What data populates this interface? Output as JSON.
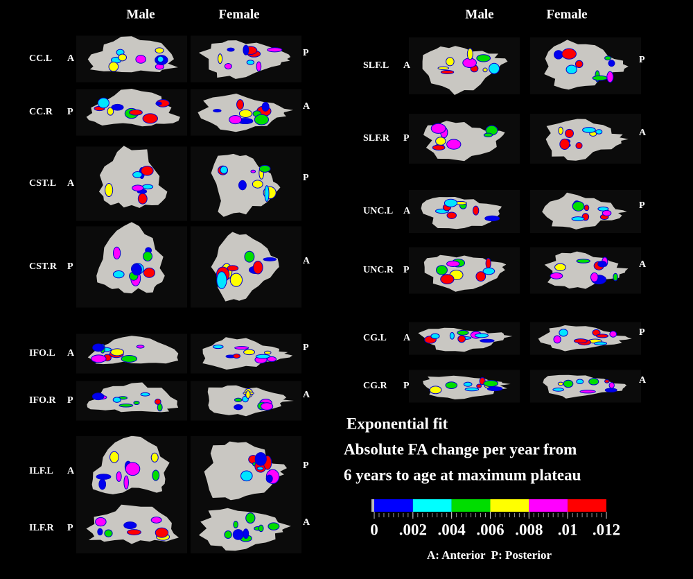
{
  "left": {
    "headers": [
      "Male",
      "Female"
    ],
    "rows": [
      {
        "tract": "CC.L",
        "start": "A",
        "end": "P"
      },
      {
        "tract": "CC.R",
        "start": "P",
        "end": "A"
      },
      {
        "tract": "CST.L",
        "start": "A",
        "end": "P"
      },
      {
        "tract": "CST.R",
        "start": "P",
        "end": "A"
      },
      {
        "tract": "IFO.L",
        "start": "A",
        "end": "P"
      },
      {
        "tract": "IFO.R",
        "start": "P",
        "end": "A"
      },
      {
        "tract": "ILF.L",
        "start": "A",
        "end": "P"
      },
      {
        "tract": "ILF.R",
        "start": "P",
        "end": "A"
      }
    ]
  },
  "right": {
    "headers": [
      "Male",
      "Female"
    ],
    "rows": [
      {
        "tract": "SLF.L",
        "start": "A",
        "end": "P"
      },
      {
        "tract": "SLF.R",
        "start": "P",
        "end": "A"
      },
      {
        "tract": "UNC.L",
        "start": "A",
        "end": "P"
      },
      {
        "tract": "UNC.R",
        "start": "P",
        "end": "A"
      },
      {
        "tract": "CG.L",
        "start": "A",
        "end": "P"
      },
      {
        "tract": "CG.R",
        "start": "P",
        "end": "A"
      }
    ]
  },
  "legend": {
    "title": "Exponential fit",
    "lines": [
      "Absolute FA change per year from",
      "6 years to age at maximum plateau"
    ],
    "colorbar": {
      "colors": [
        "#0000ff",
        "#00ffff",
        "#00dd00",
        "#ffff00",
        "#ff00ff",
        "#ff0000"
      ],
      "ticks": [
        0,
        {
          "value": 0.002,
          "label": ".002"
        },
        {
          "value": 0.004,
          "label": ".004"
        },
        {
          "value": 0.006,
          "label": ".006"
        },
        {
          "value": 0.008,
          "label": ".008"
        },
        {
          "value": 0.01,
          "label": ".01"
        },
        {
          "value": 0.012,
          "label": ".012"
        }
      ]
    },
    "note": "A: Anterior  P: Posterior"
  }
}
